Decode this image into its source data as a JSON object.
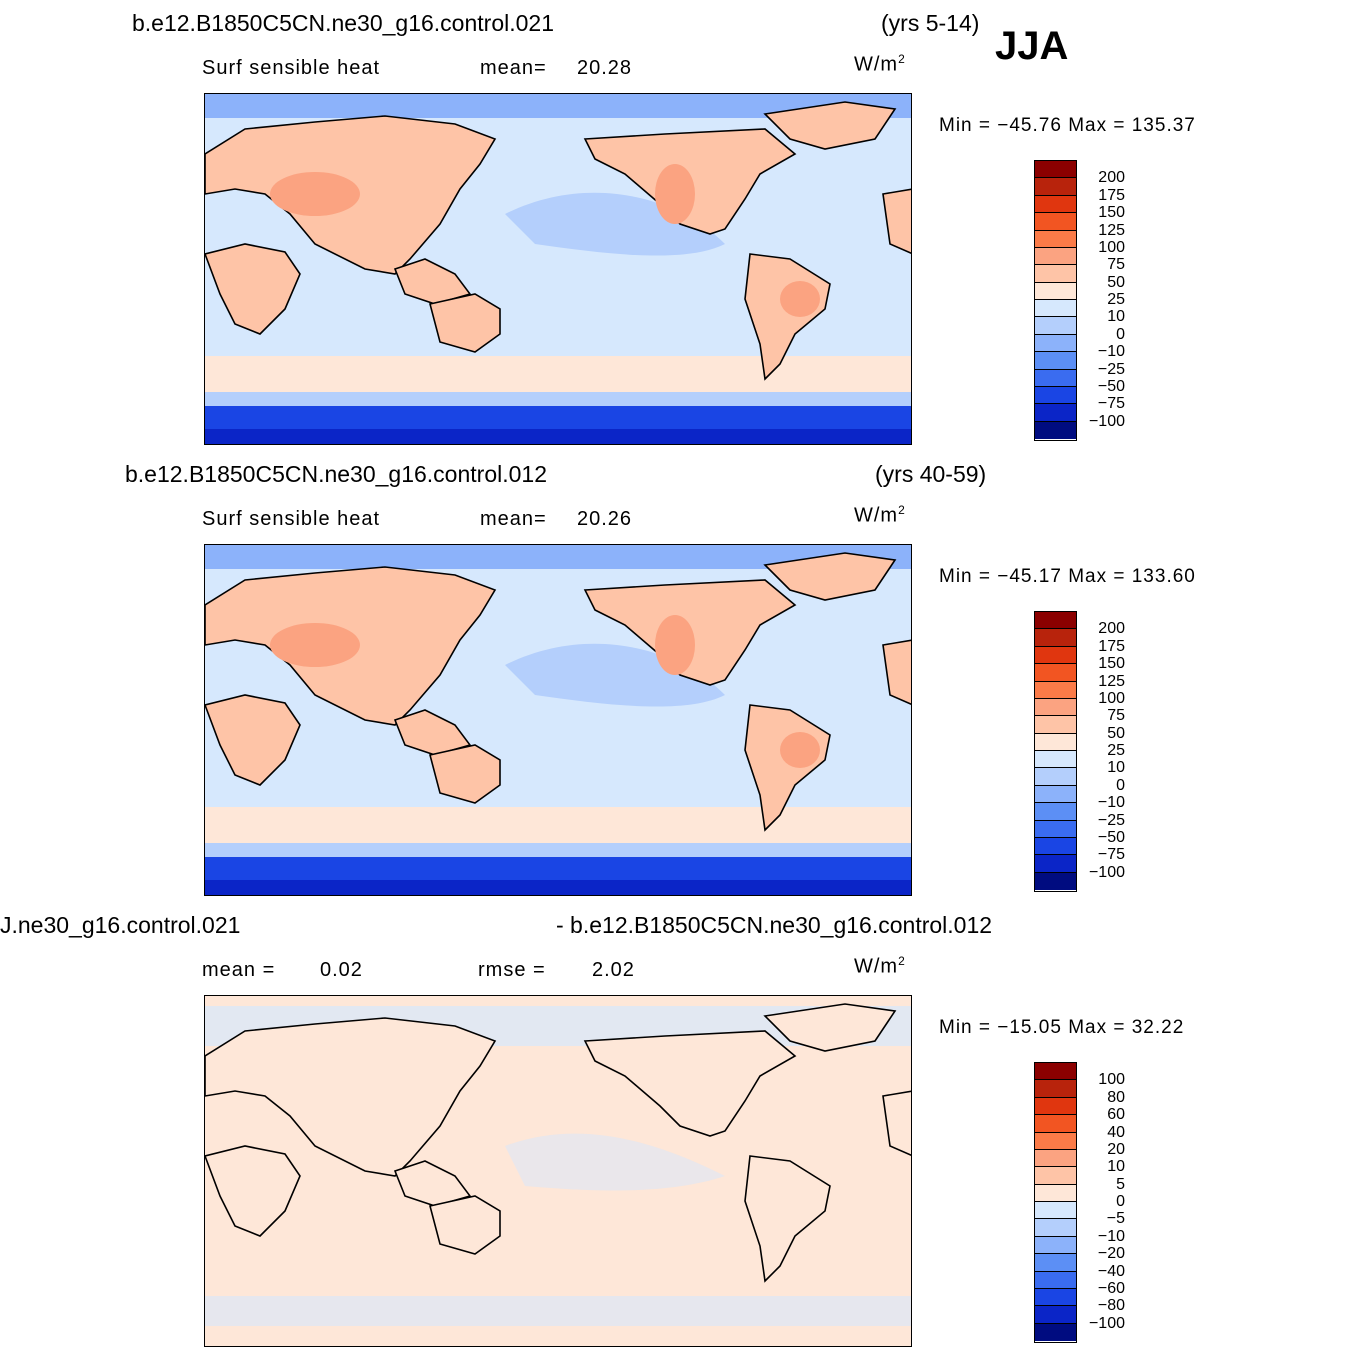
{
  "season": "JJA",
  "units_base": "W/m",
  "units_exp": "2",
  "panels": [
    {
      "case": "b.e12.B1850C5CN.ne30_g16.control.021",
      "years": "(yrs 5-14)",
      "variable": "Surf  sensible  heat",
      "stat1_label": "mean=",
      "stat1_value": "20.28",
      "minmax_text": "Min  =  −45.76  Max  =  135.37",
      "levels": [
        "200",
        "175",
        "150",
        "125",
        "100",
        "75",
        "50",
        "25",
        "10",
        "0",
        "−10",
        "−25",
        "−50",
        "−75",
        "−100"
      ],
      "colors": [
        "#8b0000",
        "#b8230c",
        "#e0360f",
        "#f25522",
        "#fb7b48",
        "#fba381",
        "#fec4a7",
        "#fee7d8",
        "#d6e8fd",
        "#b4cffc",
        "#8cb2fa",
        "#5c8ff5",
        "#3a6cf0",
        "#1a45e4",
        "#0b25c7",
        "#000c80"
      ]
    },
    {
      "case": "b.e12.B1850C5CN.ne30_g16.control.012",
      "years": "(yrs 40-59)",
      "variable": "Surf  sensible  heat",
      "stat1_label": "mean=",
      "stat1_value": "20.26",
      "minmax_text": "Min  =  −45.17  Max  =  133.60",
      "levels": [
        "200",
        "175",
        "150",
        "125",
        "100",
        "75",
        "50",
        "25",
        "10",
        "0",
        "−10",
        "−25",
        "−50",
        "−75",
        "−100"
      ],
      "colors": [
        "#8b0000",
        "#b8230c",
        "#e0360f",
        "#f25522",
        "#fb7b48",
        "#fba381",
        "#fec4a7",
        "#fee7d8",
        "#d6e8fd",
        "#b4cffc",
        "#8cb2fa",
        "#5c8ff5",
        "#3a6cf0",
        "#1a45e4",
        "#0b25c7",
        "#000c80"
      ]
    },
    {
      "case_left": "J.ne30_g16.control.021",
      "case_right": "- b.e12.B1850C5CN.ne30_g16.control.012",
      "stat1_label": "mean =",
      "stat1_value": "0.02",
      "stat2_label": "rmse =",
      "stat2_value": "2.02",
      "minmax_text": "Min  =  −15.05  Max  =   32.22",
      "levels": [
        "100",
        "80",
        "60",
        "40",
        "20",
        "10",
        "5",
        "0",
        "−5",
        "−10",
        "−20",
        "−40",
        "−60",
        "−80",
        "−100"
      ],
      "colors": [
        "#8b0000",
        "#b8230c",
        "#e0360f",
        "#f25522",
        "#fb7b48",
        "#fba381",
        "#fec4a7",
        "#fee7d8",
        "#d6e8fd",
        "#b4cffc",
        "#8cb2fa",
        "#5c8ff5",
        "#3a6cf0",
        "#1a45e4",
        "#0b25c7",
        "#000c80"
      ]
    }
  ],
  "map_colors": {
    "ocean": "#d6e8fd",
    "ocean_mid": "#b4cffc",
    "southern_ocean": "#fee7d8",
    "antarctica": "#1a45e4",
    "antarctica_dark": "#0b25c7",
    "arctic": "#8cb2fa",
    "land_warm": "#fec4a7",
    "land_hot": "#fba381",
    "diff_bg": "#fee7d8",
    "diff_cool": "#d6e8fd"
  }
}
